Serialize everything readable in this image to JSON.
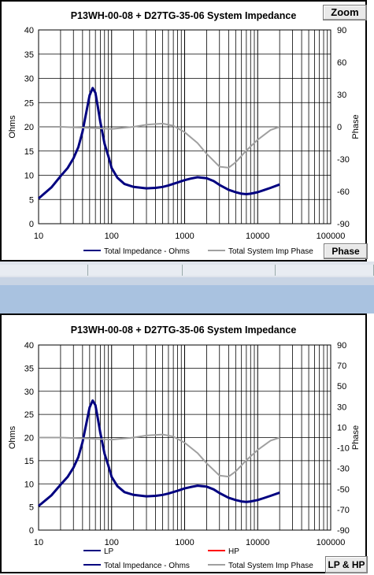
{
  "charts": [
    {
      "title": "P13WH-00-08 + D27TG-35-06      System Impedance",
      "button": "Zoom",
      "bottom_button": "Phase",
      "ylabel_left": "Ohms",
      "ylabel_right": "Phase",
      "y_ticks": [
        "40",
        "35",
        "30",
        "25",
        "20",
        "15",
        "10",
        "5",
        "0"
      ],
      "y2_ticks": [
        "90",
        "60",
        "30",
        "0",
        "-30",
        "-60",
        "-90"
      ],
      "x_ticks": [
        "10",
        "100",
        "1000",
        "10000",
        "100000"
      ],
      "legend": [
        {
          "label": "Total Impedance - Ohms",
          "color": "#000080"
        },
        {
          "label": "Total System Imp Phase",
          "color": "#a0a0a0"
        }
      ]
    },
    {
      "title": "P13WH-00-08 + D27TG-35-06      System Impedance",
      "button": "LP & HP",
      "ylabel_left": "Ohms",
      "ylabel_right": "Phase",
      "y_ticks": [
        "40",
        "35",
        "30",
        "25",
        "20",
        "15",
        "10",
        "5",
        "0"
      ],
      "y2_ticks": [
        "90",
        "70",
        "50",
        "30",
        "10",
        "-10",
        "-30",
        "-50",
        "-70",
        "-90"
      ],
      "x_ticks": [
        "10",
        "100",
        "1000",
        "10000",
        "100000"
      ],
      "legend": [
        {
          "label": "LP",
          "color": "#000080"
        },
        {
          "label": "HP",
          "color": "#ff0000"
        },
        {
          "label": "Total Impedance - Ohms",
          "color": "#000080"
        },
        {
          "label": "Total System Imp Phase",
          "color": "#a0a0a0"
        }
      ]
    }
  ],
  "chart_data": [
    {
      "type": "line",
      "title": "P13WH-00-08 + D27TG-35-06      System Impedance",
      "xlabel": "",
      "ylabel": "Ohms",
      "y2label": "Phase",
      "x_scale": "log",
      "xlim": [
        10,
        100000
      ],
      "ylim": [
        0,
        40
      ],
      "y2lim": [
        -90,
        90
      ],
      "grid": true,
      "legend": "bottom",
      "series": [
        {
          "name": "Total Impedance - Ohms",
          "axis": "left",
          "x": [
            10,
            15,
            20,
            25,
            30,
            35,
            40,
            45,
            50,
            55,
            60,
            65,
            70,
            80,
            90,
            100,
            120,
            150,
            200,
            300,
            400,
            500,
            600,
            800,
            1000,
            1200,
            1500,
            2000,
            2500,
            3000,
            4000,
            5000,
            6000,
            7000,
            8000,
            10000,
            12000,
            15000,
            20000
          ],
          "y": [
            5.2,
            7.5,
            9.8,
            11.5,
            13.5,
            15.8,
            19,
            23,
            26.5,
            28,
            27,
            24,
            21,
            16.5,
            14,
            11.5,
            9.5,
            8.2,
            7.6,
            7.3,
            7.4,
            7.6,
            7.9,
            8.5,
            9,
            9.3,
            9.6,
            9.4,
            8.8,
            8,
            7,
            6.5,
            6.2,
            6.1,
            6.2,
            6.5,
            6.9,
            7.4,
            8.1
          ]
        },
        {
          "name": "Total System Imp Phase",
          "axis": "right",
          "x": [
            10,
            20,
            50,
            100,
            200,
            300,
            500,
            700,
            1000,
            1500,
            2000,
            3000,
            4000,
            5000,
            7000,
            10000,
            15000,
            20000
          ],
          "y": [
            0,
            0,
            -1,
            -2,
            0,
            2,
            3,
            1,
            -5,
            -15,
            -25,
            -37,
            -38,
            -33,
            -22,
            -12,
            -3,
            0
          ]
        }
      ]
    },
    {
      "type": "line",
      "title": "P13WH-00-08 + D27TG-35-06      System Impedance",
      "xlabel": "",
      "ylabel": "Ohms",
      "y2label": "Phase",
      "x_scale": "log",
      "xlim": [
        10,
        100000
      ],
      "ylim": [
        0,
        40
      ],
      "y2lim": [
        -90,
        90
      ],
      "grid": true,
      "legend": "bottom",
      "series": [
        {
          "name": "Total Impedance - Ohms",
          "axis": "left",
          "x": [
            10,
            15,
            20,
            25,
            30,
            35,
            40,
            45,
            50,
            55,
            60,
            65,
            70,
            80,
            90,
            100,
            120,
            150,
            200,
            300,
            400,
            500,
            600,
            800,
            1000,
            1200,
            1500,
            2000,
            2500,
            3000,
            4000,
            5000,
            6000,
            7000,
            8000,
            10000,
            12000,
            15000,
            20000
          ],
          "y": [
            5.2,
            7.5,
            9.8,
            11.5,
            13.5,
            15.8,
            19,
            23,
            26.5,
            28,
            27,
            24,
            21,
            16.5,
            14,
            11.5,
            9.5,
            8.2,
            7.6,
            7.3,
            7.4,
            7.6,
            7.9,
            8.5,
            9,
            9.3,
            9.6,
            9.4,
            8.8,
            8,
            7,
            6.5,
            6.2,
            6.1,
            6.2,
            6.5,
            6.9,
            7.4,
            8.1
          ]
        },
        {
          "name": "Total System Imp Phase",
          "axis": "right",
          "x": [
            10,
            20,
            50,
            100,
            200,
            300,
            500,
            700,
            1000,
            1500,
            2000,
            3000,
            4000,
            5000,
            7000,
            10000,
            15000,
            20000
          ],
          "y": [
            0,
            0,
            -1,
            -2,
            0,
            2,
            3,
            1,
            -5,
            -15,
            -25,
            -37,
            -38,
            -33,
            -22,
            -12,
            -3,
            0
          ]
        }
      ]
    }
  ]
}
